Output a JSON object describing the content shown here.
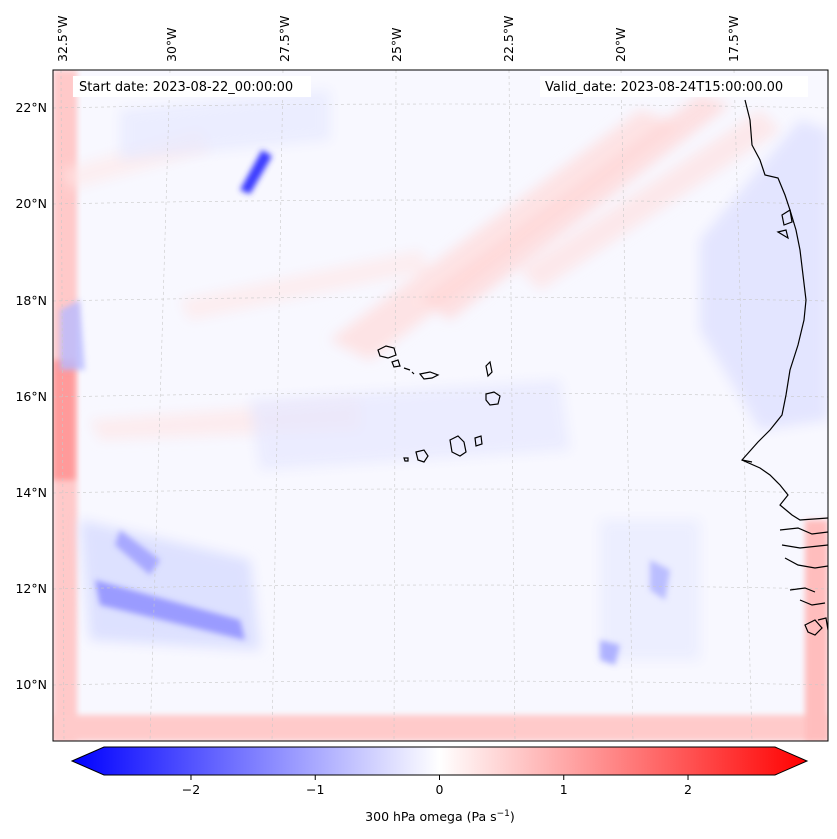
{
  "map": {
    "start_date": "Start date: 2023-08-22_00:00:00",
    "valid_date": "Valid_date: 2023-08-24T15:00:00.00",
    "lon_labels": [
      "32.5°W",
      "30°W",
      "27.5°W",
      "25°W",
      "22.5°W",
      "20°W",
      "17.5°W"
    ],
    "lat_labels": [
      "22°N",
      "20°N",
      "18°N",
      "16°N",
      "14°N",
      "12°N",
      "10°N"
    ],
    "variable": "300 hPa omega",
    "units": "Pa s",
    "units_exponent": "−1"
  },
  "colorbar": {
    "ticks": [
      "−2",
      "−1",
      "0",
      "1",
      "2"
    ],
    "tick_values": [
      -2,
      -1,
      0,
      1,
      2
    ],
    "range": [
      -2.7,
      2.7
    ],
    "colors": {
      "negative": "#0000ff",
      "zero": "#ffffff",
      "positive": "#ff0000"
    }
  }
}
